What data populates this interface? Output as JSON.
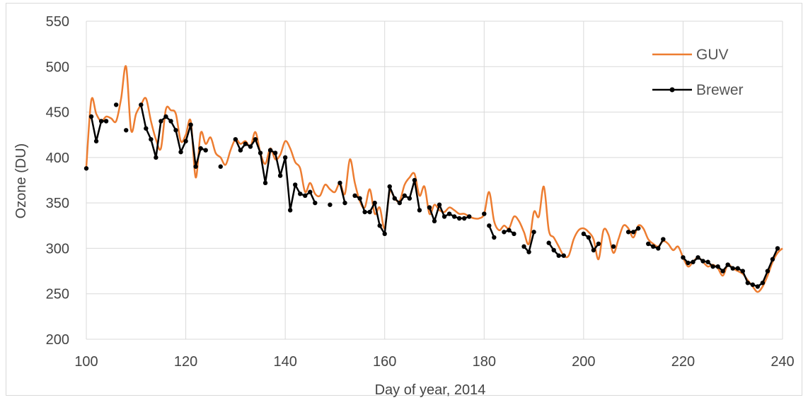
{
  "chart_data": {
    "type": "line",
    "xlabel": "Day of year, 2014",
    "ylabel": "Ozone (DU)",
    "xlim": [
      100,
      240
    ],
    "ylim": [
      200,
      550
    ],
    "x_ticks": [
      100,
      120,
      140,
      160,
      180,
      200,
      220,
      240
    ],
    "y_ticks": [
      200,
      250,
      300,
      350,
      400,
      450,
      500,
      550
    ],
    "grid": true,
    "legend_position": "top-right",
    "series": [
      {
        "name": "GUV",
        "color": "#ED7D31",
        "marker": "none",
        "points": [
          [
            100,
            390
          ],
          [
            101,
            463
          ],
          [
            102,
            448
          ],
          [
            103,
            440
          ],
          [
            104,
            445
          ],
          [
            105,
            443
          ],
          [
            106,
            440
          ],
          [
            107,
            465
          ],
          [
            108,
            500
          ],
          [
            109,
            430
          ],
          [
            110,
            448
          ],
          [
            111,
            458
          ],
          [
            112,
            465
          ],
          [
            113,
            440
          ],
          [
            114,
            420
          ],
          [
            115,
            410
          ],
          [
            116,
            453
          ],
          [
            117,
            452
          ],
          [
            118,
            448
          ],
          [
            119,
            418
          ],
          [
            120,
            425
          ],
          [
            121,
            440
          ],
          [
            122,
            378
          ],
          [
            123,
            427
          ],
          [
            124,
            415
          ],
          [
            125,
            422
          ],
          [
            126,
            405
          ],
          [
            127,
            400
          ],
          [
            128,
            392
          ],
          [
            129,
            408
          ],
          [
            130,
            420
          ],
          [
            131,
            415
          ],
          [
            132,
            418
          ],
          [
            133,
            412
          ],
          [
            134,
            428
          ],
          [
            135,
            405
          ],
          [
            136,
            393
          ],
          [
            137,
            410
          ],
          [
            138,
            398
          ],
          [
            139,
            403
          ],
          [
            140,
            418
          ],
          [
            141,
            410
          ],
          [
            142,
            395
          ],
          [
            143,
            388
          ],
          [
            144,
            362
          ],
          [
            145,
            372
          ],
          [
            146,
            360
          ],
          [
            147,
            358
          ],
          [
            148,
            370
          ],
          [
            149,
            365
          ],
          [
            150,
            362
          ],
          [
            151,
            372
          ],
          [
            152,
            360
          ],
          [
            153,
            398
          ],
          [
            154,
            372
          ],
          [
            155,
            352
          ],
          [
            156,
            345
          ],
          [
            157,
            365
          ],
          [
            158,
            338
          ],
          [
            159,
            345
          ],
          [
            160,
            322
          ],
          [
            161,
            362
          ],
          [
            162,
            355
          ],
          [
            163,
            352
          ],
          [
            164,
            370
          ],
          [
            165,
            378
          ],
          [
            166,
            382
          ],
          [
            167,
            358
          ],
          [
            168,
            368
          ],
          [
            169,
            338
          ],
          [
            170,
            348
          ],
          [
            171,
            342
          ],
          [
            172,
            340
          ],
          [
            173,
            345
          ],
          [
            174,
            342
          ],
          [
            175,
            338
          ],
          [
            176,
            338
          ],
          [
            177,
            335
          ],
          [
            178,
            333
          ],
          [
            179,
            333
          ],
          [
            180,
            338
          ],
          [
            181,
            362
          ],
          [
            182,
            330
          ],
          [
            183,
            320
          ],
          [
            184,
            325
          ],
          [
            185,
            322
          ],
          [
            186,
            335
          ],
          [
            187,
            330
          ],
          [
            188,
            318
          ],
          [
            189,
            305
          ],
          [
            190,
            340
          ],
          [
            191,
            335
          ],
          [
            192,
            368
          ],
          [
            193,
            320
          ],
          [
            194,
            312
          ],
          [
            195,
            302
          ],
          [
            196,
            292
          ],
          [
            197,
            292
          ],
          [
            198,
            310
          ],
          [
            199,
            320
          ],
          [
            200,
            322
          ],
          [
            201,
            318
          ],
          [
            202,
            310
          ],
          [
            203,
            288
          ],
          [
            204,
            320
          ],
          [
            205,
            315
          ],
          [
            206,
            295
          ],
          [
            207,
            310
          ],
          [
            208,
            325
          ],
          [
            209,
            322
          ],
          [
            210,
            312
          ],
          [
            211,
            325
          ],
          [
            212,
            322
          ],
          [
            213,
            310
          ],
          [
            214,
            305
          ],
          [
            215,
            302
          ],
          [
            216,
            308
          ],
          [
            217,
            305
          ],
          [
            218,
            298
          ],
          [
            219,
            302
          ],
          [
            220,
            290
          ],
          [
            221,
            280
          ],
          [
            222,
            285
          ],
          [
            223,
            290
          ],
          [
            224,
            285
          ],
          [
            225,
            280
          ],
          [
            226,
            282
          ],
          [
            227,
            278
          ],
          [
            228,
            270
          ],
          [
            229,
            282
          ],
          [
            230,
            278
          ],
          [
            231,
            275
          ],
          [
            232,
            272
          ],
          [
            233,
            265
          ],
          [
            234,
            258
          ],
          [
            235,
            252
          ],
          [
            236,
            258
          ],
          [
            237,
            270
          ],
          [
            238,
            285
          ],
          [
            239,
            295
          ],
          [
            240,
            300
          ]
        ]
      },
      {
        "name": "Brewer",
        "color": "#000000",
        "marker": "circle",
        "segments": [
          [
            [
              100,
              388
            ]
          ],
          [
            [
              101,
              445
            ],
            [
              102,
              418
            ],
            [
              103,
              440
            ],
            [
              104,
              440
            ]
          ],
          [
            [
              106,
              458
            ]
          ],
          [
            [
              108,
              430
            ]
          ],
          [
            [
              111,
              458
            ],
            [
              112,
              432
            ],
            [
              113,
              420
            ],
            [
              114,
              400
            ],
            [
              115,
              440
            ],
            [
              116,
              445
            ],
            [
              117,
              440
            ],
            [
              118,
              430
            ],
            [
              119,
              406
            ],
            [
              120,
              418
            ],
            [
              121,
              436
            ],
            [
              122,
              390
            ],
            [
              123,
              410
            ],
            [
              124,
              408
            ]
          ],
          [
            [
              127,
              390
            ]
          ],
          [
            [
              130,
              420
            ],
            [
              131,
              408
            ],
            [
              132,
              415
            ],
            [
              133,
              412
            ],
            [
              134,
              420
            ],
            [
              135,
              405
            ],
            [
              136,
              372
            ],
            [
              137,
              408
            ],
            [
              138,
              405
            ],
            [
              139,
              380
            ],
            [
              140,
              400
            ],
            [
              141,
              342
            ],
            [
              142,
              370
            ],
            [
              143,
              360
            ],
            [
              144,
              358
            ],
            [
              145,
              362
            ],
            [
              146,
              350
            ]
          ],
          [
            [
              149,
              348
            ]
          ],
          [
            [
              151,
              372
            ],
            [
              152,
              350
            ]
          ],
          [
            [
              154,
              358
            ],
            [
              155,
              355
            ],
            [
              156,
              340
            ],
            [
              157,
              340
            ],
            [
              158,
              350
            ],
            [
              159,
              325
            ],
            [
              160,
              316
            ],
            [
              161,
              368
            ],
            [
              162,
              355
            ],
            [
              163,
              350
            ],
            [
              164,
              358
            ],
            [
              165,
              355
            ],
            [
              166,
              375
            ],
            [
              167,
              342
            ]
          ],
          [
            [
              169,
              345
            ],
            [
              170,
              330
            ],
            [
              171,
              348
            ],
            [
              172,
              335
            ],
            [
              173,
              338
            ],
            [
              174,
              335
            ],
            [
              175,
              333
            ],
            [
              176,
              333
            ],
            [
              177,
              335
            ]
          ],
          [
            [
              180,
              338
            ]
          ],
          [
            [
              181,
              325
            ],
            [
              182,
              312
            ]
          ],
          [
            [
              184,
              318
            ],
            [
              185,
              320
            ],
            [
              186,
              316
            ]
          ],
          [
            [
              188,
              302
            ],
            [
              189,
              296
            ],
            [
              190,
              318
            ]
          ],
          [
            [
              193,
              306
            ],
            [
              194,
              298
            ],
            [
              195,
              292
            ],
            [
              196,
              292
            ]
          ],
          [
            [
              200,
              316
            ],
            [
              201,
              312
            ],
            [
              202,
              298
            ],
            [
              203,
              305
            ]
          ],
          [
            [
              206,
              302
            ]
          ],
          [
            [
              209,
              318
            ],
            [
              210,
              318
            ],
            [
              211,
              322
            ]
          ],
          [
            [
              213,
              305
            ],
            [
              214,
              302
            ],
            [
              215,
              300
            ],
            [
              216,
              310
            ]
          ],
          [
            [
              220,
              290
            ],
            [
              221,
              284
            ],
            [
              222,
              285
            ],
            [
              223,
              290
            ],
            [
              224,
              286
            ],
            [
              225,
              285
            ],
            [
              226,
              280
            ],
            [
              227,
              280
            ],
            [
              228,
              275
            ],
            [
              229,
              282
            ],
            [
              230,
              278
            ],
            [
              231,
              278
            ],
            [
              232,
              275
            ],
            [
              233,
              262
            ],
            [
              234,
              260
            ],
            [
              235,
              258
            ],
            [
              236,
              262
            ],
            [
              237,
              275
            ],
            [
              238,
              288
            ],
            [
              239,
              300
            ]
          ]
        ]
      }
    ]
  }
}
